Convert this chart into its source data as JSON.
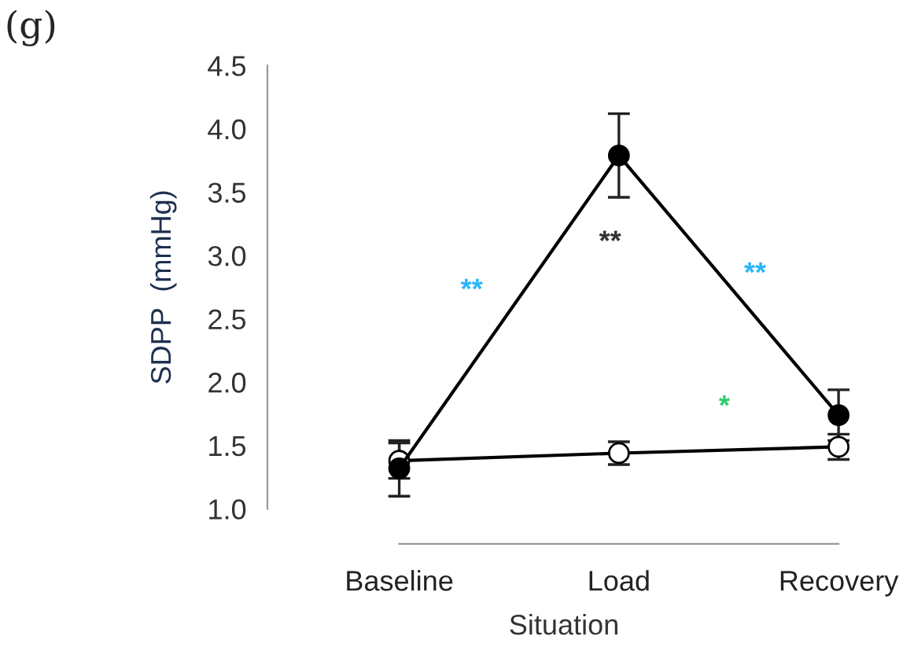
{
  "chart_data": {
    "type": "line",
    "title": "(g)",
    "xlabel": "Situation",
    "ylabel": "SDPP  (mmHg)",
    "categories": [
      "Baseline",
      "Load",
      "Recovery"
    ],
    "series": [
      {
        "color": "#000000",
        "values": [
          1.32,
          3.79,
          1.74
        ],
        "errors": [
          0.22,
          0.33,
          0.2
        ]
      },
      {
        "color": "#000000",
        "values": [
          1.38,
          1.44,
          1.49
        ],
        "errors": [
          0.14,
          0.09,
          0.1
        ]
      }
    ],
    "annotations": [
      "**",
      "**",
      "**",
      "*"
    ],
    "ylim": [
      1.0,
      4.5
    ],
    "yticks": [
      {
        "value": 1.0,
        "label": "1.0"
      },
      {
        "value": 1.5,
        "label": "1.5"
      },
      {
        "value": 2.0,
        "label": "2.0"
      },
      {
        "value": 2.5,
        "label": "2.5"
      },
      {
        "value": 3.0,
        "label": "3.0"
      },
      {
        "value": 3.5,
        "label": "3.5"
      },
      {
        "value": 4.0,
        "label": "4.0"
      },
      {
        "value": 4.5,
        "label": "4.5"
      }
    ],
    "marker": "circle",
    "line_style": "solid",
    "grid": false,
    "legend": false
  }
}
